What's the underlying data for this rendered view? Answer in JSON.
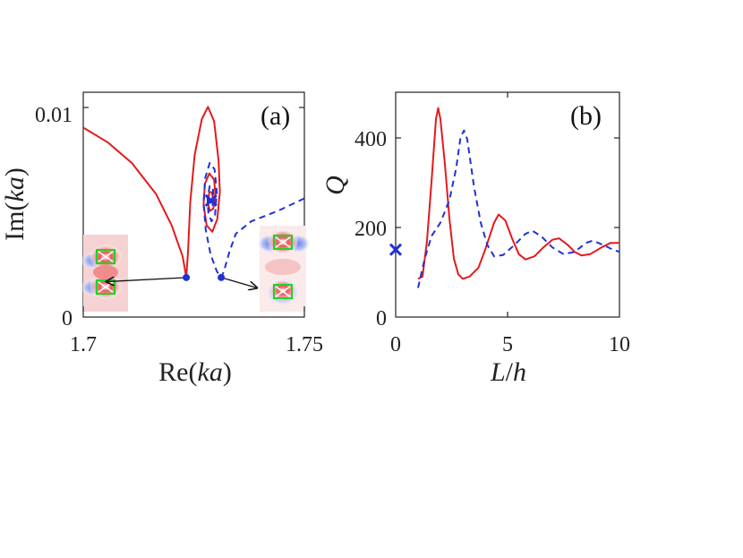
{
  "chart_data": [
    {
      "type": "line",
      "panel_label": "(a)",
      "xlabel_text": "Re(",
      "xlabel_var": "ka",
      "xlabel_close": ")",
      "ylabel_text": "Im(",
      "ylabel_var": "ka",
      "ylabel_close": ")",
      "xlim": [
        1.7,
        1.75
      ],
      "ylim": [
        0,
        0.0108
      ],
      "xticks": [
        1.7,
        1.75
      ],
      "xtick_labels": [
        "1.7",
        "1.75"
      ],
      "yticks": [
        0,
        0.01
      ],
      "ytick_labels": [
        "0",
        "0.01"
      ],
      "series": [
        {
          "name": "red-solid",
          "color": "#e31a1c",
          "dash": "solid",
          "points": [
            [
              1.7,
              0.0091
            ],
            [
              1.7055,
              0.0084
            ],
            [
              1.711,
              0.0074
            ],
            [
              1.7165,
              0.0059
            ],
            [
              1.72,
              0.0044
            ],
            [
              1.7225,
              0.0029
            ],
            [
              1.7233,
              0.0019
            ],
            [
              1.7237,
              0.0032
            ],
            [
              1.7242,
              0.0055
            ],
            [
              1.7252,
              0.0078
            ],
            [
              1.7268,
              0.0095
            ],
            [
              1.7282,
              0.0101
            ],
            [
              1.7296,
              0.0094
            ],
            [
              1.7306,
              0.0075
            ],
            [
              1.7309,
              0.006
            ],
            [
              1.7303,
              0.0047
            ],
            [
              1.7292,
              0.0041
            ],
            [
              1.7279,
              0.0044
            ],
            [
              1.7272,
              0.0054
            ],
            [
              1.7275,
              0.0064
            ],
            [
              1.7285,
              0.0069
            ],
            [
              1.7296,
              0.0066
            ],
            [
              1.7299,
              0.0058
            ],
            [
              1.7294,
              0.0052
            ],
            [
              1.7286,
              0.0051
            ],
            [
              1.7282,
              0.0055
            ],
            [
              1.7285,
              0.006
            ],
            [
              1.7291,
              0.006
            ],
            [
              1.7293,
              0.0057
            ],
            [
              1.729,
              0.0055
            ],
            [
              1.7288,
              0.0057
            ]
          ]
        },
        {
          "name": "blue-dashed",
          "color": "#1f32d6",
          "dash": "dashed",
          "points": [
            [
              1.75,
              0.0057
            ],
            [
              1.744,
              0.0051
            ],
            [
              1.738,
              0.0046
            ],
            [
              1.7345,
              0.004
            ],
            [
              1.733,
              0.0031
            ],
            [
              1.7318,
              0.0022
            ],
            [
              1.7312,
              0.0019
            ],
            [
              1.7302,
              0.0022
            ],
            [
              1.7288,
              0.003
            ],
            [
              1.7277,
              0.0042
            ],
            [
              1.7272,
              0.0055
            ],
            [
              1.7276,
              0.0067
            ],
            [
              1.7286,
              0.0074
            ],
            [
              1.7297,
              0.0071
            ],
            [
              1.7302,
              0.006
            ],
            [
              1.7298,
              0.0049
            ],
            [
              1.729,
              0.0046
            ],
            [
              1.7283,
              0.005
            ],
            [
              1.7281,
              0.0057
            ],
            [
              1.7286,
              0.0063
            ],
            [
              1.7293,
              0.0062
            ],
            [
              1.7295,
              0.0056
            ],
            [
              1.7291,
              0.0053
            ],
            [
              1.7288,
              0.0056
            ]
          ]
        }
      ],
      "markers": [
        {
          "name": "exceptional-point",
          "shape": "x",
          "x": 1.7289,
          "y": 0.0056,
          "color": "#1f32d6"
        },
        {
          "name": "endpoint-red",
          "shape": "dot",
          "x": 1.7233,
          "y": 0.0019,
          "color": "#1f32d6"
        },
        {
          "name": "endpoint-blue",
          "shape": "dot",
          "x": 1.7312,
          "y": 0.0019,
          "color": "#1f32d6"
        }
      ],
      "annotations": [
        {
          "name": "arrow-left",
          "from": [
            1.7233,
            0.0019
          ],
          "to": [
            1.7052,
            0.0017
          ]
        },
        {
          "name": "arrow-right",
          "from": [
            1.7312,
            0.0019
          ],
          "to": [
            1.7393,
            0.0014
          ]
        }
      ],
      "insets": [
        {
          "name": "mode-inset-left",
          "pattern": "symmetric"
        },
        {
          "name": "mode-inset-right",
          "pattern": "antisymmetric"
        }
      ]
    },
    {
      "type": "line",
      "panel_label": "(b)",
      "xlabel_var": "L",
      "xlabel_sep": "/",
      "xlabel_var2": "h",
      "ylabel_var": "Q",
      "xlim": [
        0,
        10
      ],
      "ylim": [
        0,
        500
      ],
      "xticks": [
        0,
        5,
        10
      ],
      "xtick_labels": [
        "0",
        "5",
        "10"
      ],
      "yticks": [
        0,
        200,
        400
      ],
      "ytick_labels": [
        "0",
        "200",
        "400"
      ],
      "series": [
        {
          "name": "red-solid",
          "color": "#e31a1c",
          "dash": "solid",
          "points": [
            [
              1,
              85
            ],
            [
              1.2,
              90
            ],
            [
              1.4,
              170
            ],
            [
              1.6,
              300
            ],
            [
              1.8,
              440
            ],
            [
              1.9,
              465
            ],
            [
              2.0,
              440
            ],
            [
              2.2,
              340
            ],
            [
              2.4,
              220
            ],
            [
              2.6,
              130
            ],
            [
              2.8,
              95
            ],
            [
              3.0,
              85
            ],
            [
              3.3,
              90
            ],
            [
              3.7,
              110
            ],
            [
              4.0,
              150
            ],
            [
              4.4,
              210
            ],
            [
              4.6,
              228
            ],
            [
              4.9,
              215
            ],
            [
              5.2,
              175
            ],
            [
              5.5,
              140
            ],
            [
              5.8,
              128
            ],
            [
              6.2,
              135
            ],
            [
              6.6,
              155
            ],
            [
              7.0,
              172
            ],
            [
              7.3,
              175
            ],
            [
              7.7,
              160
            ],
            [
              8.0,
              145
            ],
            [
              8.3,
              137
            ],
            [
              8.7,
              140
            ],
            [
              9.2,
              155
            ],
            [
              9.6,
              165
            ],
            [
              10.0,
              165
            ]
          ]
        },
        {
          "name": "blue-dashed",
          "color": "#1f32d6",
          "dash": "dashed",
          "points": [
            [
              1,
              65
            ],
            [
              1.3,
              130
            ],
            [
              1.6,
              180
            ],
            [
              2.0,
              210
            ],
            [
              2.4,
              260
            ],
            [
              2.7,
              330
            ],
            [
              2.9,
              400
            ],
            [
              3.05,
              415
            ],
            [
              3.2,
              395
            ],
            [
              3.5,
              290
            ],
            [
              3.8,
              210
            ],
            [
              4.1,
              160
            ],
            [
              4.4,
              135
            ],
            [
              4.8,
              138
            ],
            [
              5.3,
              160
            ],
            [
              5.8,
              185
            ],
            [
              6.1,
              192
            ],
            [
              6.5,
              180
            ],
            [
              7.0,
              155
            ],
            [
              7.5,
              140
            ],
            [
              8.0,
              145
            ],
            [
              8.5,
              165
            ],
            [
              8.8,
              170
            ],
            [
              9.3,
              160
            ],
            [
              9.7,
              150
            ],
            [
              10.0,
              145
            ]
          ]
        }
      ],
      "markers": [
        {
          "name": "single-cylinder",
          "shape": "x",
          "x": 0,
          "y": 150,
          "color": "#1f32d6"
        }
      ]
    }
  ]
}
